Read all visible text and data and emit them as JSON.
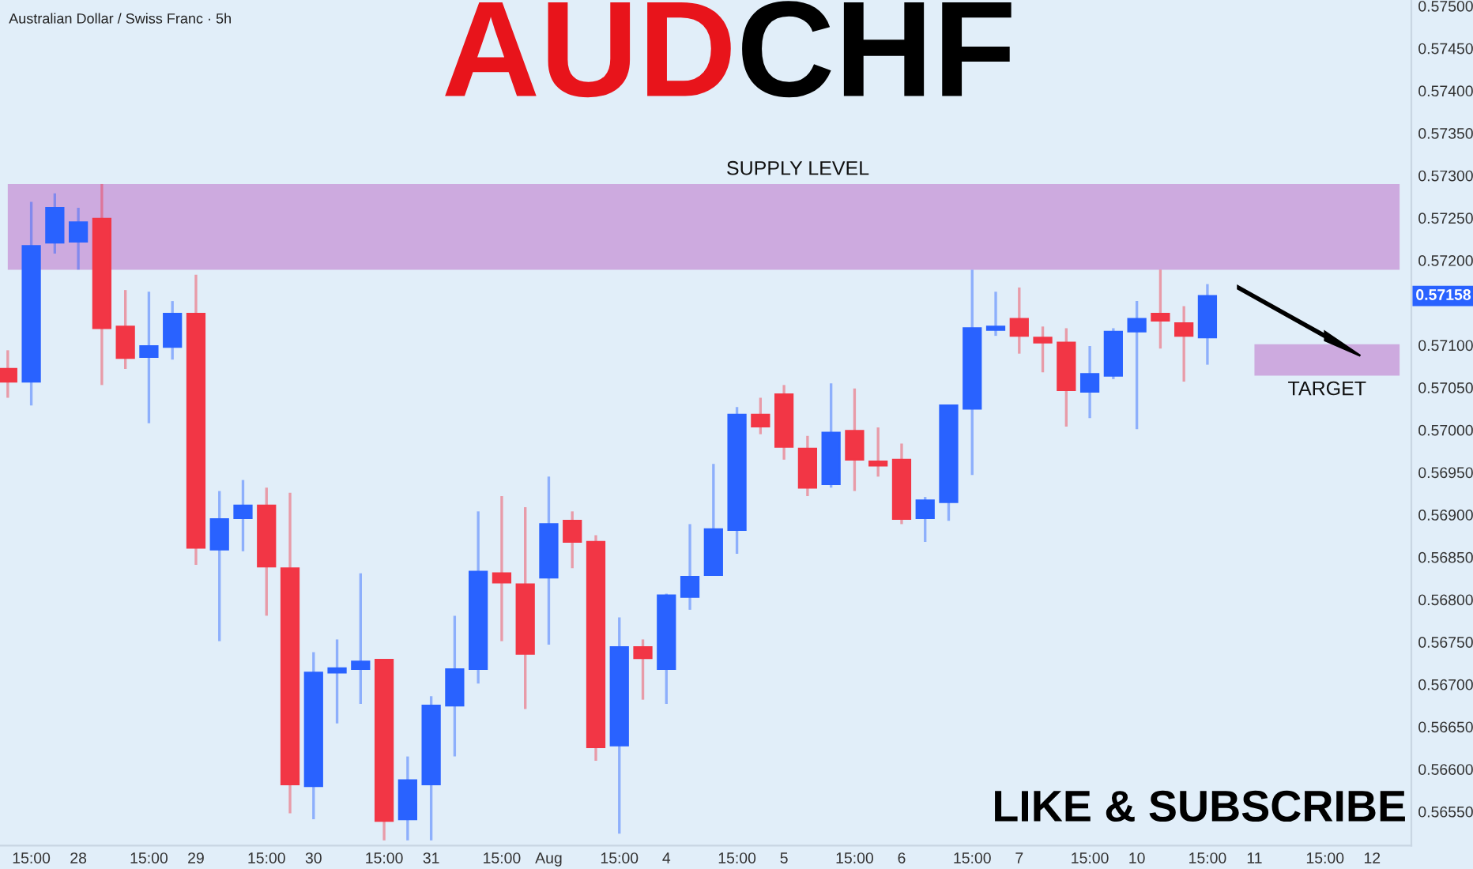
{
  "chart_data": {
    "type": "candlestick",
    "title": "AUDCHF",
    "subtitle": "Australian Dollar / Swiss Franc · 5h",
    "categories": [
      null,
      "15:00",
      null,
      "28",
      null,
      null,
      "15:00",
      null,
      "29",
      null,
      null,
      "15:00",
      null,
      "30",
      null,
      null,
      "15:00",
      null,
      "31",
      null,
      null,
      "15:00",
      null,
      "Aug",
      null,
      null,
      "15:00",
      null,
      "4",
      null,
      null,
      "15:00",
      null,
      "5",
      null,
      null,
      "15:00",
      null,
      "6",
      null,
      null,
      "15:00",
      null,
      "7",
      null,
      null,
      "15:00",
      null,
      "10",
      null,
      null,
      "15:00",
      null,
      "11",
      null,
      null,
      "15:00",
      null,
      "12",
      null
    ],
    "colors": [
      "#f23645",
      "#2962ff",
      "#2962ff",
      "#2962ff",
      "#f23645",
      "#f23645",
      "#2962ff",
      "#2962ff",
      "#f23645",
      "#2962ff",
      "#2962ff",
      "#f23645",
      "#f23645",
      "#2962ff",
      "#2962ff",
      "#2962ff",
      "#f23645",
      "#2962ff",
      "#2962ff",
      "#2962ff",
      "#2962ff",
      "#f23645",
      "#f23645",
      "#2962ff",
      "#f23645",
      "#f23645",
      "#2962ff",
      "#f23645",
      "#2962ff",
      "#2962ff",
      "#2962ff",
      "#2962ff",
      "#f23645",
      "#f23645",
      "#f23645",
      "#2962ff",
      "#f23645",
      "#f23645",
      "#f23645",
      "#2962ff",
      "#2962ff",
      "#2962ff",
      "#2962ff",
      "#f23645",
      "#f23645",
      "#f23645",
      "#2962ff",
      "#2962ff",
      "#2962ff",
      "#f23645",
      "#f23645",
      "#2962ff",
      null,
      null,
      null,
      null,
      null,
      null,
      null,
      null
    ],
    "ohlc": [
      [
        0.57072,
        0.57094,
        0.57038,
        0.57057
      ],
      [
        0.57057,
        0.57269,
        0.57029,
        0.57217
      ],
      [
        0.57221,
        0.57279,
        0.57208,
        0.57262
      ],
      [
        0.57222,
        0.57262,
        0.57189,
        0.57245
      ],
      [
        0.57249,
        0.5729,
        0.57053,
        0.5712
      ],
      [
        0.57122,
        0.57165,
        0.57072,
        0.57085
      ],
      [
        0.57086,
        0.57163,
        0.57008,
        0.57099
      ],
      [
        0.57098,
        0.57152,
        0.57083,
        0.57137
      ],
      [
        0.57137,
        0.57183,
        0.56841,
        0.56861
      ],
      [
        0.56859,
        0.56928,
        0.56751,
        0.56895
      ],
      [
        0.56896,
        0.56941,
        0.56857,
        0.56911
      ],
      [
        0.56911,
        0.56932,
        0.56781,
        0.56839
      ],
      [
        0.56837,
        0.56926,
        0.56548,
        0.56582
      ],
      [
        0.5658,
        0.56738,
        0.56541,
        0.56714
      ],
      [
        0.56714,
        0.56753,
        0.56654,
        0.56719
      ],
      [
        0.56718,
        0.56831,
        0.56677,
        0.56727
      ],
      [
        0.56729,
        0.56729,
        0.56516,
        0.56539
      ],
      [
        0.56541,
        0.56615,
        0.56516,
        0.56587
      ],
      [
        0.56582,
        0.56686,
        0.56516,
        0.56675
      ],
      [
        0.56675,
        0.56781,
        0.56615,
        0.56718
      ],
      [
        0.56718,
        0.56904,
        0.56701,
        0.56833
      ],
      [
        0.56831,
        0.56922,
        0.56751,
        0.5682
      ],
      [
        0.56818,
        0.56909,
        0.56671,
        0.56736
      ],
      [
        0.56826,
        0.56945,
        0.56747,
        0.56889
      ],
      [
        0.56893,
        0.56904,
        0.56837,
        0.56868
      ],
      [
        0.56868,
        0.56876,
        0.5661,
        0.56626
      ],
      [
        0.56628,
        0.56779,
        0.56524,
        0.56744
      ],
      [
        0.56744,
        0.56753,
        0.56682,
        0.56731
      ],
      [
        0.56718,
        0.56807,
        0.56677,
        0.56805
      ],
      [
        0.56803,
        0.56889,
        0.56788,
        0.56827
      ],
      [
        0.56829,
        0.5696,
        0.56829,
        0.56883
      ],
      [
        0.56882,
        0.57027,
        0.56854,
        0.57018
      ],
      [
        0.57018,
        0.57038,
        0.56995,
        0.57004
      ],
      [
        0.57042,
        0.57053,
        0.56965,
        0.5698
      ],
      [
        0.56978,
        0.56993,
        0.56922,
        0.56932
      ],
      [
        0.56936,
        0.57055,
        0.56932,
        0.56997
      ],
      [
        0.56999,
        0.57049,
        0.56928,
        0.56965
      ],
      [
        0.56963,
        0.57003,
        0.56945,
        0.56958
      ],
      [
        0.56965,
        0.56984,
        0.56889,
        0.56895
      ],
      [
        0.56896,
        0.56921,
        0.56868,
        0.56917
      ],
      [
        0.56915,
        0.57029,
        0.56893,
        0.57029
      ],
      [
        0.57025,
        0.57189,
        0.56947,
        0.5712
      ],
      [
        0.57118,
        0.57163,
        0.57111,
        0.57122
      ],
      [
        0.57131,
        0.57168,
        0.5709,
        0.57111
      ],
      [
        0.57109,
        0.57122,
        0.57068,
        0.57103
      ],
      [
        0.57103,
        0.5712,
        0.57004,
        0.57047
      ],
      [
        0.57045,
        0.57099,
        0.57014,
        0.57066
      ],
      [
        0.57064,
        0.5712,
        0.5706,
        0.57116
      ],
      [
        0.57116,
        0.57152,
        0.57001,
        0.57131
      ],
      [
        0.57137,
        0.57189,
        0.57096,
        0.57129
      ],
      [
        0.57126,
        0.57146,
        0.57057,
        0.57111
      ],
      [
        0.57109,
        0.57172,
        0.57077,
        0.57158
      ],
      null,
      null,
      null,
      null,
      null,
      null,
      null,
      null
    ],
    "ylim": [
      0.5651,
      0.57507
    ],
    "yticks": [
      {
        "value": 0.5655,
        "label": "0.56550"
      },
      {
        "value": 0.566,
        "label": "0.56600"
      },
      {
        "value": 0.5665,
        "label": "0.56650"
      },
      {
        "value": 0.567,
        "label": "0.56700"
      },
      {
        "value": 0.5675,
        "label": "0.56750"
      },
      {
        "value": 0.568,
        "label": "0.56800"
      },
      {
        "value": 0.5685,
        "label": "0.56850"
      },
      {
        "value": 0.569,
        "label": "0.56900"
      },
      {
        "value": 0.5695,
        "label": "0.56950"
      },
      {
        "value": 0.57,
        "label": "0.57000"
      },
      {
        "value": 0.5705,
        "label": "0.57050"
      },
      {
        "value": 0.571,
        "label": "0.57100"
      },
      {
        "value": 0.572,
        "label": "0.57200"
      },
      {
        "value": 0.5725,
        "label": "0.57250"
      },
      {
        "value": 0.573,
        "label": "0.57300"
      },
      {
        "value": 0.5735,
        "label": "0.57350"
      },
      {
        "value": 0.574,
        "label": "0.57400"
      },
      {
        "value": 0.5745,
        "label": "0.57450"
      },
      {
        "value": 0.575,
        "label": "0.57500"
      }
    ],
    "bands": [
      {
        "axis": "y",
        "from": 0.57189,
        "to": 0.5729,
        "label": "SUPPLY LEVEL",
        "color": "#cdaadf"
      },
      {
        "axis": "y",
        "from": 0.57064,
        "to": 0.57101,
        "label": "TARGET",
        "color": "#cdaadf"
      }
    ],
    "annotations": [
      "0.57158",
      "LIKE & SUBSCRIBE"
    ],
    "grid": false
  }
}
